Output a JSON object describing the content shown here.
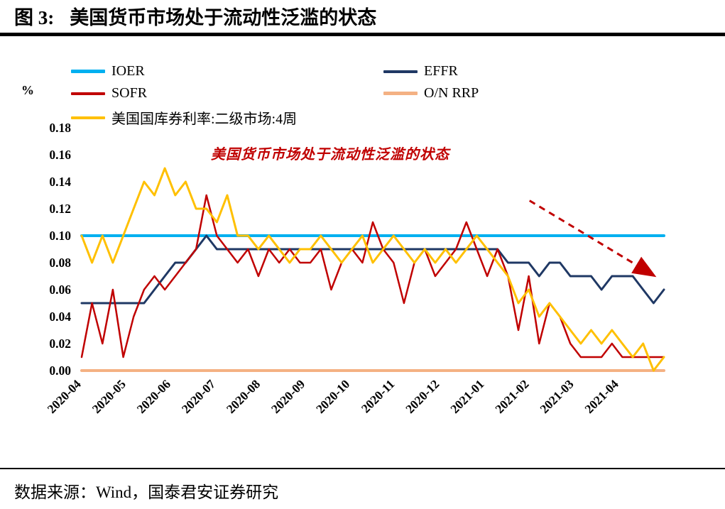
{
  "header": {
    "title_prefix": "图 3:",
    "title": "美国货币市场处于流动性泛滥的状态"
  },
  "footer": {
    "source": "数据来源：Wind，国泰君安证券研究"
  },
  "chart_data": {
    "type": "line",
    "title": "",
    "ylabel": "%",
    "xlabel": "",
    "ylim": [
      0,
      0.18
    ],
    "grid": false,
    "legend_position": "top",
    "y_ticks": [
      "0.00",
      "0.02",
      "0.04",
      "0.06",
      "0.08",
      "0.10",
      "0.12",
      "0.14",
      "0.16",
      "0.18"
    ],
    "x_tick_labels": [
      "2020-04",
      "2020-05",
      "2020-06",
      "2020-07",
      "2020-08",
      "2020-09",
      "2020-10",
      "2020-11",
      "2020-12",
      "2021-01",
      "2021-02",
      "2021-03",
      "2021-04"
    ],
    "x_tick_span": 13,
    "points_span": 56,
    "annotation": "美国货币市场处于流动性泛滥的状态",
    "annotation_color": "#C00000",
    "trend_arrow": {
      "x1": 10.0,
      "y1": 0.126,
      "x2": 12.75,
      "y2": 0.071,
      "color": "#C00000",
      "style": "dashed"
    },
    "series": [
      {
        "key": "ioer",
        "name": "IOER",
        "color": "#00B0F0",
        "width": 4,
        "constant": 0.1
      },
      {
        "key": "onrrp",
        "name": "O/N RRP",
        "color": "#F4B183",
        "width": 4,
        "constant": 0.0
      },
      {
        "key": "effr",
        "name": "EFFR",
        "color": "#1F3864",
        "width": 3,
        "values": [
          0.05,
          0.05,
          0.05,
          0.05,
          0.05,
          0.05,
          0.05,
          0.06,
          0.07,
          0.08,
          0.08,
          0.09,
          0.1,
          0.09,
          0.09,
          0.09,
          0.09,
          0.09,
          0.09,
          0.09,
          0.09,
          0.09,
          0.09,
          0.09,
          0.09,
          0.09,
          0.09,
          0.09,
          0.09,
          0.09,
          0.09,
          0.09,
          0.09,
          0.09,
          0.09,
          0.09,
          0.09,
          0.09,
          0.09,
          0.09,
          0.09,
          0.08,
          0.08,
          0.08,
          0.07,
          0.08,
          0.08,
          0.07,
          0.07,
          0.07,
          0.06,
          0.07,
          0.07,
          0.07,
          0.06,
          0.05,
          0.06
        ]
      },
      {
        "key": "sofr",
        "name": "SOFR",
        "color": "#C00000",
        "width": 2.5,
        "values": [
          0.01,
          0.05,
          0.02,
          0.06,
          0.01,
          0.04,
          0.06,
          0.07,
          0.06,
          0.07,
          0.08,
          0.09,
          0.13,
          0.1,
          0.09,
          0.08,
          0.09,
          0.07,
          0.09,
          0.08,
          0.09,
          0.08,
          0.08,
          0.09,
          0.06,
          0.08,
          0.09,
          0.08,
          0.11,
          0.09,
          0.08,
          0.05,
          0.08,
          0.09,
          0.07,
          0.08,
          0.09,
          0.11,
          0.09,
          0.07,
          0.09,
          0.07,
          0.03,
          0.07,
          0.02,
          0.05,
          0.04,
          0.02,
          0.01,
          0.01,
          0.01,
          0.02,
          0.01,
          0.01,
          0.01,
          0.01,
          0.01
        ]
      },
      {
        "key": "tbill4w",
        "name": "美国国库券利率:二级市场:4周",
        "color": "#FFC000",
        "width": 3,
        "values": [
          0.1,
          0.08,
          0.1,
          0.08,
          0.1,
          0.12,
          0.14,
          0.13,
          0.15,
          0.13,
          0.14,
          0.12,
          0.12,
          0.11,
          0.13,
          0.1,
          0.1,
          0.09,
          0.1,
          0.09,
          0.08,
          0.09,
          0.09,
          0.1,
          0.09,
          0.08,
          0.09,
          0.1,
          0.08,
          0.09,
          0.1,
          0.09,
          0.08,
          0.09,
          0.08,
          0.09,
          0.08,
          0.09,
          0.1,
          0.09,
          0.08,
          0.07,
          0.05,
          0.06,
          0.04,
          0.05,
          0.04,
          0.03,
          0.02,
          0.03,
          0.02,
          0.03,
          0.02,
          0.01,
          0.02,
          0.0,
          0.01
        ]
      }
    ],
    "legend_layout": [
      [
        0,
        2
      ],
      [
        3,
        1
      ],
      [
        4
      ]
    ]
  }
}
